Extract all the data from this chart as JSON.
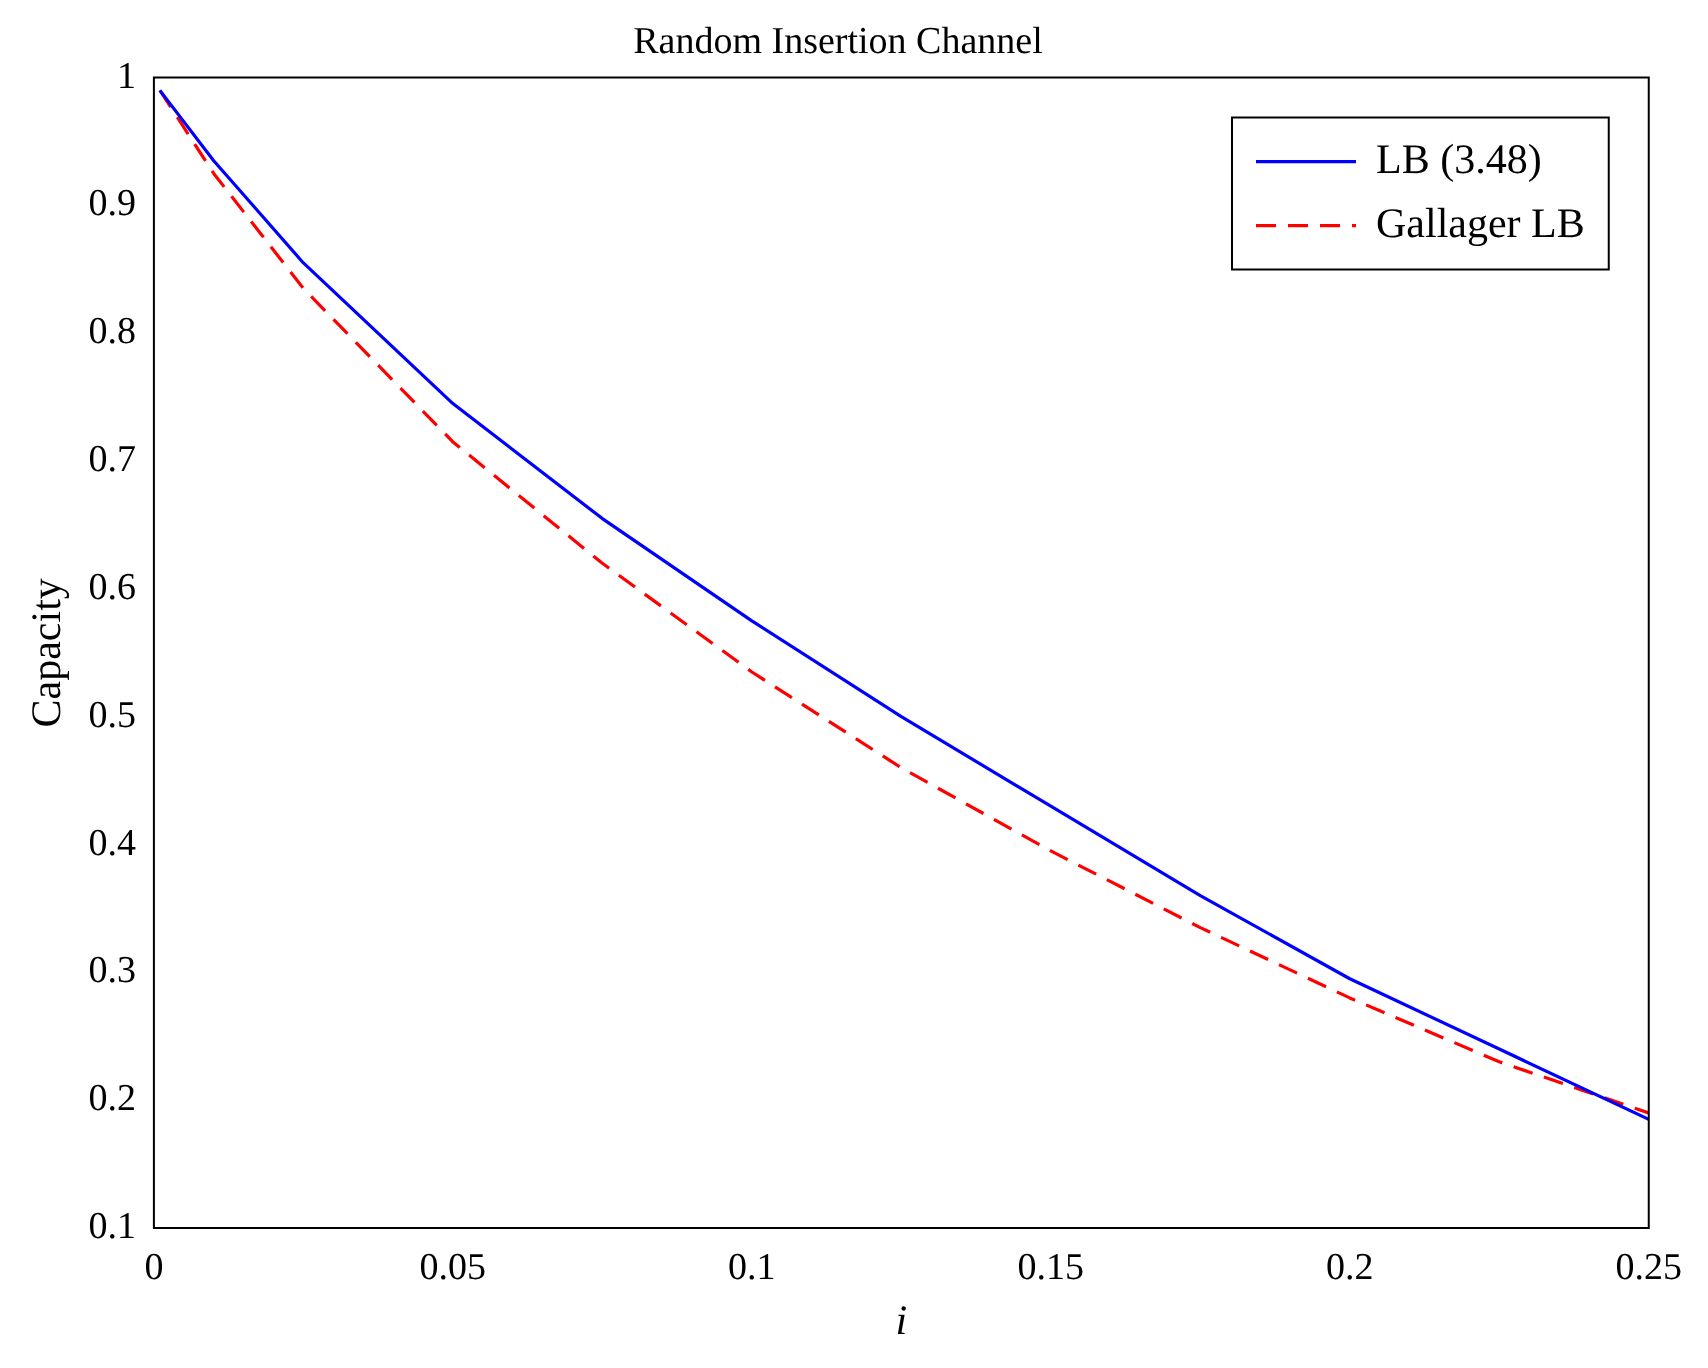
{
  "chart_data": {
    "type": "line",
    "title": "Random Insertion Channel",
    "xlabel": "i",
    "ylabel": "Capacity",
    "xlim": [
      0,
      0.25
    ],
    "ylim": [
      0.1,
      1
    ],
    "xticks": [
      0,
      0.05,
      0.1,
      0.15,
      0.2,
      0.25
    ],
    "yticks": [
      0.1,
      0.2,
      0.3,
      0.4,
      0.5,
      0.6,
      0.7,
      0.8,
      0.9,
      1
    ],
    "grid": false,
    "legend": "top right",
    "marker": "none",
    "series": [
      {
        "name": "LB (3.48)",
        "color": "#0000ff",
        "line_style": "solid",
        "x": [
          0.001,
          0.01,
          0.025,
          0.05,
          0.075,
          0.1,
          0.125,
          0.15,
          0.175,
          0.2,
          0.225,
          0.25
        ],
        "values": [
          0.99,
          0.935,
          0.855,
          0.745,
          0.655,
          0.575,
          0.5,
          0.43,
          0.36,
          0.295,
          0.24,
          0.185
        ]
      },
      {
        "name": "Gallager LB",
        "color": "#ff0000",
        "line_style": "dashed",
        "x": [
          0.001,
          0.01,
          0.025,
          0.05,
          0.075,
          0.1,
          0.125,
          0.15,
          0.175,
          0.2,
          0.225,
          0.25
        ],
        "values": [
          0.99,
          0.925,
          0.835,
          0.715,
          0.62,
          0.535,
          0.46,
          0.395,
          0.335,
          0.28,
          0.23,
          0.19
        ]
      }
    ]
  }
}
